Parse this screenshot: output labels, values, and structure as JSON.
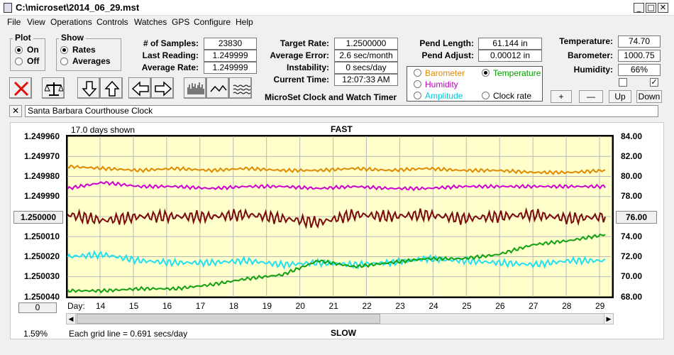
{
  "window": {
    "title": "C:\\microset\\2014_06_29.mst"
  },
  "menu": [
    "File",
    "View",
    "Operations",
    "Controls",
    "Watches",
    "GPS",
    "Configure",
    "Help"
  ],
  "plot": {
    "label": "Plot",
    "options": [
      "On",
      "Off"
    ],
    "selected": "On"
  },
  "show": {
    "label": "Show",
    "options": [
      "Rates",
      "Averages"
    ],
    "selected": "Rates"
  },
  "stats": {
    "samples_label": "# of Samples:",
    "samples": "23830",
    "last_label": "Last Reading:",
    "last": "1.249999",
    "avg_label": "Average Rate:",
    "avg": "1.249999"
  },
  "rates": {
    "target_label": "Target Rate:",
    "target": "1.2500000",
    "error_label": "Average Error:",
    "error": "2.6 sec/month",
    "instab_label": "Instability:",
    "instab": "0 secs/day",
    "time_label": "Current Time:",
    "time": "12:07:33 AM"
  },
  "pend": {
    "length_label": "Pend Length:",
    "length": "61.144 in",
    "adjust_label": "Pend Adjust:",
    "adjust": "0.00012 in"
  },
  "env": {
    "temp_label": "Temperature:",
    "temp": "74.70",
    "baro_label": "Barometer:",
    "baro": "1000.75",
    "hum_label": "Humidity:",
    "hum": "66%"
  },
  "params": [
    {
      "label": "Barometer",
      "color": "#e08a00",
      "checked": false
    },
    {
      "label": "Temperature",
      "color": "#009a00",
      "checked": true
    },
    {
      "label": "Humidity",
      "color": "#c000c0",
      "checked": false
    },
    {
      "label": "Amplitude",
      "color": "#00c8d8",
      "checked": false
    },
    {
      "label": "Clock rate",
      "color": "#000000",
      "checked": false
    }
  ],
  "adjust_buttons": [
    "+",
    "—",
    "Up",
    "Down"
  ],
  "checkboxes": [
    false,
    true
  ],
  "subtitle": "MicroSet Clock and Watch Timer",
  "clock_name": "Santa Barbara Courthouse Clock",
  "icons": [
    "stop-icon",
    "balance-icon",
    "arrow-down-icon",
    "arrow-up-icon",
    "arrow-left-icon",
    "arrow-right-icon",
    "bar-chart-icon",
    "wave-icon",
    "noise-icon"
  ],
  "chart_data": {
    "type": "line",
    "days_shown": "17.0 days shown",
    "top_label": "FAST",
    "bottom_label": "SLOW",
    "grid_note": "Each grid line = 0.691 secs/day",
    "percent": "1.59%",
    "left_center_button": "1.250000",
    "right_center_button": "76.00",
    "zero_button": "0",
    "x_prefix": "Day:",
    "x_ticks": [
      "14",
      "15",
      "16",
      "17",
      "18",
      "19",
      "20",
      "21",
      "22",
      "23",
      "24",
      "25",
      "26",
      "27",
      "28",
      "29"
    ],
    "y_left_ticks": [
      "1.249960",
      "1.249970",
      "1.249980",
      "1.249990",
      "1.250000",
      "1.250010",
      "1.250020",
      "1.250030",
      "1.250040"
    ],
    "y_right_ticks": [
      "84.00",
      "82.00",
      "80.00",
      "78.00",
      "76.00",
      "74.00",
      "72.00",
      "70.00",
      "68.00"
    ],
    "series": [
      {
        "name": "Barometer",
        "color": "#e08a00",
        "values": [
          1.249975,
          1.249976,
          1.249977,
          1.249976,
          1.249977,
          1.249976,
          1.249977,
          1.249977,
          1.249976,
          1.249977,
          1.249976,
          1.249977,
          1.249977,
          1.249978,
          1.249978,
          1.249977
        ]
      },
      {
        "name": "Humidity",
        "color": "#d000d0",
        "values": [
          1.249986,
          1.249983,
          1.249985,
          1.249985,
          1.249986,
          1.249985,
          1.249985,
          1.249986,
          1.249985,
          1.249986,
          1.249986,
          1.249985,
          1.249985,
          1.249985,
          1.249985,
          1.249985
        ]
      },
      {
        "name": "Clock rate",
        "color": "#7a0a0a",
        "values": [
          1.249999,
          1.250002,
          1.25,
          1.25,
          1.25,
          1.249999,
          1.250001,
          1.250003,
          1.249999,
          1.25,
          1.249999,
          1.250001,
          1.25,
          1.249999,
          1.250001,
          1.25
        ]
      },
      {
        "name": "Amplitude",
        "color": "#22e0f0",
        "values": [
          1.25002,
          1.250019,
          1.250022,
          1.250023,
          1.250023,
          1.250022,
          1.250024,
          1.250023,
          1.250024,
          1.250023,
          1.250021,
          1.250022,
          1.250023,
          1.250024,
          1.250022,
          1.250022
        ]
      },
      {
        "name": "Temperature",
        "color": "#10a010",
        "values": [
          1.250037,
          1.250037,
          1.250036,
          1.250036,
          1.250034,
          1.250031,
          1.250029,
          1.250022,
          1.250025,
          1.250023,
          1.250021,
          1.250021,
          1.250019,
          1.250014,
          1.250012,
          1.250009
        ]
      }
    ],
    "ylim": [
      1.24996,
      1.25004
    ]
  }
}
